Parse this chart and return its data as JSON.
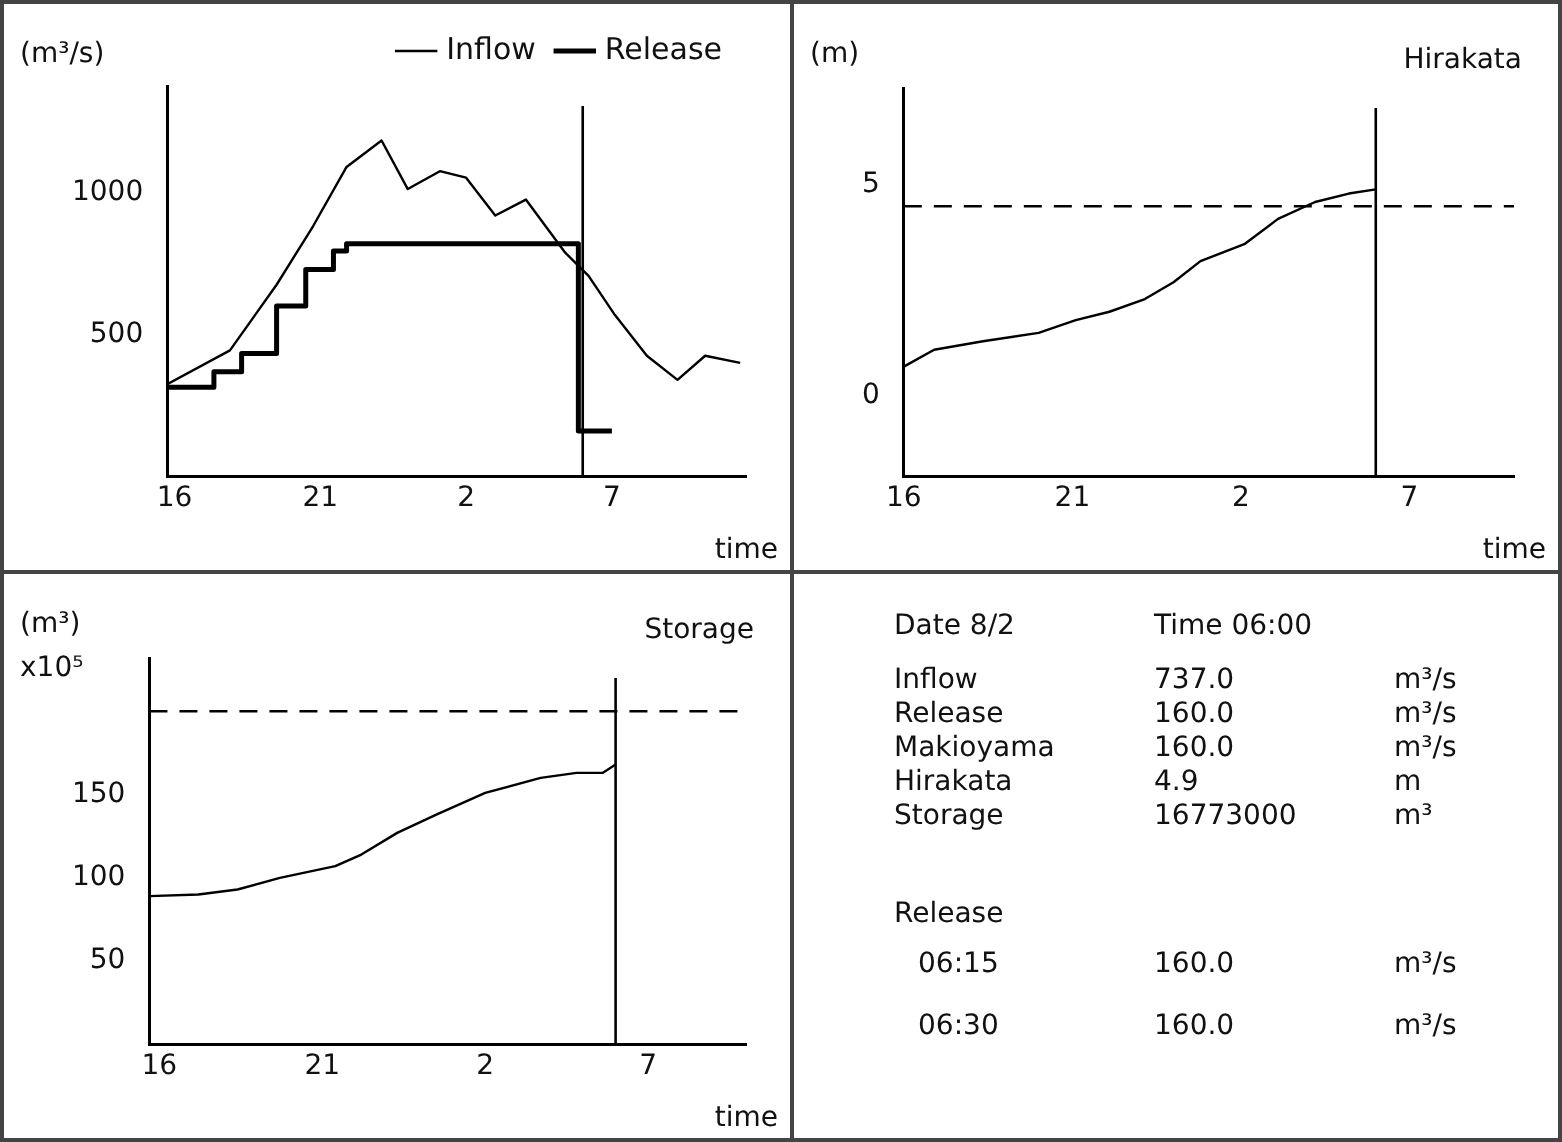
{
  "chart_data": [
    {
      "type": "line",
      "ylabel": "(m³/s)",
      "xlabel": "time",
      "legend": "top right",
      "xlim": [
        "--08-01T15:45",
        "--08-02T11:36"
      ],
      "xticks": [
        {
          "value": "--08-01T16:00",
          "label": "16"
        },
        {
          "value": "--08-01T21:00",
          "label": "21"
        },
        {
          "value": "--08-02T02:00",
          "label": "2"
        },
        {
          "value": "--08-02T07:00",
          "label": "7"
        }
      ],
      "ylim": [
        0,
        1375
      ],
      "yticks": [
        500,
        1000
      ],
      "ref_lines": [
        {
          "axis": "x",
          "value": "--08-02T06:00",
          "color": "#000000",
          "line_style": "solid"
        }
      ],
      "series": [
        {
          "name": "Inflow",
          "color": "#000000",
          "x": [
            "--08-01T15:45",
            "--08-01T17:54",
            "--08-01T19:30",
            "--08-01T20:45",
            "--08-01T21:54",
            "--08-01T23:06",
            "--08-02T00:00",
            "--08-02T01:06",
            "--08-02T02:00",
            "--08-02T03:00",
            "--08-02T04:03",
            "--08-02T05:24",
            "--08-02T06:12",
            "--08-02T07:06",
            "--08-02T08:12",
            "--08-02T09:15",
            "--08-02T10:12",
            "--08-02T11:24"
          ],
          "values": [
            325,
            444,
            675,
            881,
            1090,
            1183,
            1012,
            1075,
            1052,
            919,
            975,
            788,
            706,
            569,
            425,
            340,
            425,
            400
          ]
        },
        {
          "name": "Release",
          "type": "step",
          "color": "#000000",
          "x": [
            "--08-01T15:45",
            "--08-01T17:21",
            "--08-01T18:18",
            "--08-01T19:30",
            "--08-01T20:30",
            "--08-01T21:27",
            "--08-01T21:54",
            "--08-02T05:51",
            "--08-02T07:00"
          ],
          "values": [
            314,
            369,
            433,
            600,
            729,
            794,
            819,
            160,
            160
          ]
        }
      ]
    },
    {
      "type": "line",
      "title": "Hirakata",
      "ylabel": "(m)",
      "xlabel": "time",
      "xlim": [
        "--08-01T16:00",
        "--08-02T10:06"
      ],
      "xticks": [
        {
          "value": "--08-01T16:00",
          "label": "16"
        },
        {
          "value": "--08-01T21:00",
          "label": "21"
        },
        {
          "value": "--08-02T02:00",
          "label": "2"
        },
        {
          "value": "--08-02T07:00",
          "label": "7"
        }
      ],
      "ylim": [
        -1.9,
        7.3
      ],
      "yticks": [
        0,
        5
      ],
      "ref_lines": [
        {
          "axis": "y",
          "value": 4.5,
          "color": "#000000",
          "line_style": "dashed"
        },
        {
          "axis": "x",
          "value": "--08-02T06:00",
          "color": "#000000",
          "line_style": "solid"
        }
      ],
      "series": [
        {
          "color": "#000000",
          "x": [
            "--08-01T16:00",
            "--08-01T16:54",
            "--08-01T18:21",
            "--08-01T20:00",
            "--08-01T21:06",
            "--08-01T22:06",
            "--08-01T23:09",
            "--08-02T00:00",
            "--08-02T00:48",
            "--08-02T02:06",
            "--08-02T03:06",
            "--08-02T04:12",
            "--08-02T05:12",
            "--08-02T06:00"
          ],
          "values": [
            0.7,
            1.1,
            1.3,
            1.5,
            1.8,
            2.0,
            2.3,
            2.7,
            3.2,
            3.6,
            4.2,
            4.6,
            4.8,
            4.9
          ]
        }
      ]
    },
    {
      "type": "line",
      "title": "Storage",
      "ylabel": "(m³) x10⁵",
      "xlabel": "time",
      "xlim": [
        "--08-01T15:42",
        "--08-02T10:00"
      ],
      "xticks": [
        {
          "value": "--08-01T16:00",
          "label": "16"
        },
        {
          "value": "--08-01T21:00",
          "label": "21"
        },
        {
          "value": "--08-02T02:00",
          "label": "2"
        },
        {
          "value": "--08-02T07:00",
          "label": "7"
        }
      ],
      "ylim": [
        0,
        232
      ],
      "yticks": [
        50,
        100,
        150
      ],
      "ref_lines": [
        {
          "axis": "y",
          "value": 200,
          "color": "#000000",
          "line_style": "dashed"
        },
        {
          "axis": "x",
          "value": "--08-02T06:00",
          "color": "#000000",
          "line_style": "solid"
        }
      ],
      "series": [
        {
          "color": "#000000",
          "x": [
            "--08-01T15:42",
            "--08-01T17:12",
            "--08-01T18:24",
            "--08-01T19:42",
            "--08-01T21:24",
            "--08-01T22:12",
            "--08-01T23:18",
            "--08-02T00:30",
            "--08-02T02:00",
            "--08-02T03:42",
            "--08-02T04:48",
            "--08-02T05:36",
            "--08-02T06:00"
          ],
          "values": [
            89,
            90,
            93,
            100,
            107,
            114,
            127,
            138,
            151,
            160,
            163,
            163,
            168
          ]
        }
      ]
    },
    {
      "type": "other",
      "annotations": [
        "Date     8/2",
        "Time 06:00",
        "Inflow",
        "737.0",
        "m³/s",
        "Release",
        "160.0",
        "m³/s",
        "Makioyama",
        "160.0",
        "m³/s",
        "Hirakata",
        "4.9",
        "m",
        "Storage",
        "16773000",
        "m³",
        "Release",
        "06:15",
        "160.0",
        "m³/s",
        "06:30",
        "160.0",
        "m³/s"
      ]
    }
  ]
}
